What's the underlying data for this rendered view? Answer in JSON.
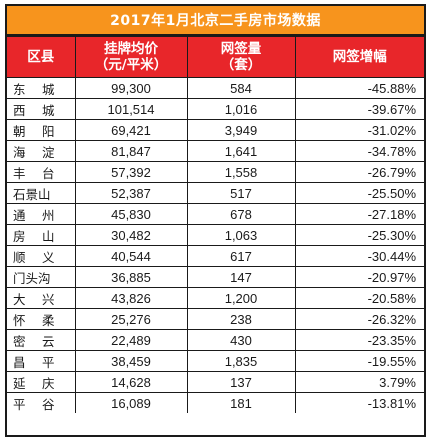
{
  "title": "2017年1月北京二手房市场数据",
  "headers": {
    "district": "区县",
    "price_line1": "挂牌均价",
    "price_line2": "（元/平米）",
    "volume_line1": "网签量",
    "volume_line2": "（套）",
    "change": "网签增幅"
  },
  "rows": [
    {
      "district": "东　城",
      "price": "99,300",
      "volume": "584",
      "change": "-45.88%"
    },
    {
      "district": "西　城",
      "price": "101,514",
      "volume": "1,016",
      "change": "-39.67%"
    },
    {
      "district": "朝　阳",
      "price": "69,421",
      "volume": "3,949",
      "change": "-31.02%"
    },
    {
      "district": "海　淀",
      "price": "81,847",
      "volume": "1,641",
      "change": "-34.78%"
    },
    {
      "district": "丰　台",
      "price": "57,392",
      "volume": "1,558",
      "change": "-26.79%"
    },
    {
      "district": "石景山",
      "price": "52,387",
      "volume": "517",
      "change": "-25.50%"
    },
    {
      "district": "通　州",
      "price": "45,830",
      "volume": "678",
      "change": "-27.18%"
    },
    {
      "district": "房　山",
      "price": "30,482",
      "volume": "1,063",
      "change": "-25.30%"
    },
    {
      "district": "顺　义",
      "price": "40,544",
      "volume": "617",
      "change": "-30.44%"
    },
    {
      "district": "门头沟",
      "price": "36,885",
      "volume": "147",
      "change": "-20.97%"
    },
    {
      "district": "大　兴",
      "price": "43,826",
      "volume": "1,200",
      "change": "-20.58%"
    },
    {
      "district": "怀　柔",
      "price": "25,276",
      "volume": "238",
      "change": "-26.32%"
    },
    {
      "district": "密　云",
      "price": "22,489",
      "volume": "430",
      "change": "-23.35%"
    },
    {
      "district": "昌　平",
      "price": "38,459",
      "volume": "1,835",
      "change": "-19.55%"
    },
    {
      "district": "延　庆",
      "price": "14,628",
      "volume": "137",
      "change": "3.79%"
    },
    {
      "district": "平　谷",
      "price": "16,089",
      "volume": "181",
      "change": "-13.81%"
    }
  ],
  "colors": {
    "title_bg": "#f7941d",
    "header_bg": "#e8262a",
    "text": "#1a1a1a",
    "border": "#1a1a1a"
  }
}
